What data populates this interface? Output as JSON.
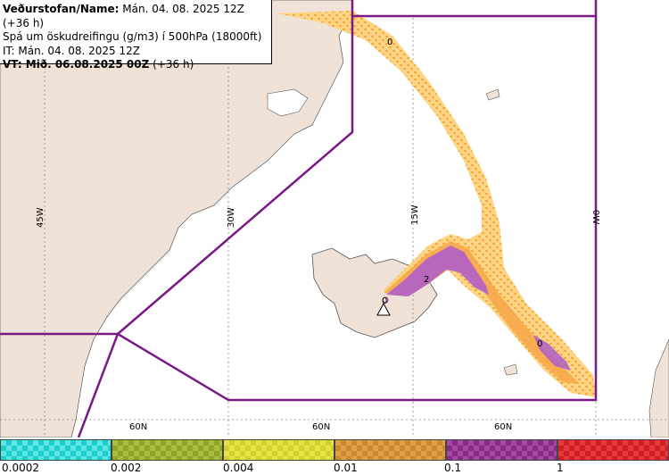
{
  "info": {
    "line1_label": "Veðurstofan/Name:",
    "line1_value": " Mán. 04. 08. 2025 12Z (+36 h)",
    "line2": "Spá um öskudreifingu (g/m3) í 500hPa (18000ft)",
    "line3": "IT: Mán. 04. 08. 2025 12Z",
    "line4_label": "VT: Mið. 06.08.2025 00Z",
    "line4_value": " (+36 h)"
  },
  "map": {
    "longitude_labels": [
      "45W",
      "30W",
      "15W",
      "0W"
    ],
    "latitude_labels": [
      "60N",
      "60N",
      "60N"
    ],
    "contour_labels": [
      "0",
      "0",
      "2",
      "0"
    ],
    "colors": {
      "land": "#f0e2d6",
      "sea": "#ffffff",
      "region_border": "#7a1a86",
      "ash_light": "#ffc870",
      "ash_mid": "#f7a84a",
      "ash_high": "#b05fc8",
      "ash_trace": "#a8ecea"
    },
    "volcano_icon": "volcano-triangle-icon"
  },
  "legend": {
    "ticks": [
      "0.0002",
      "0.002",
      "0.004",
      "0.01",
      "0.1",
      "1"
    ],
    "bins": [
      {
        "color_a": "#1ecfd0",
        "color_b": "#5ee6e3"
      },
      {
        "color_a": "#8fa52a",
        "color_b": "#a9c03c"
      },
      {
        "color_a": "#d3d02c",
        "color_b": "#e6e34a"
      },
      {
        "color_a": "#cc8a30",
        "color_b": "#e0a04a"
      },
      {
        "color_a": "#862c86",
        "color_b": "#a24aa2"
      },
      {
        "color_a": "#cf1e24",
        "color_b": "#e63a3a"
      }
    ]
  }
}
